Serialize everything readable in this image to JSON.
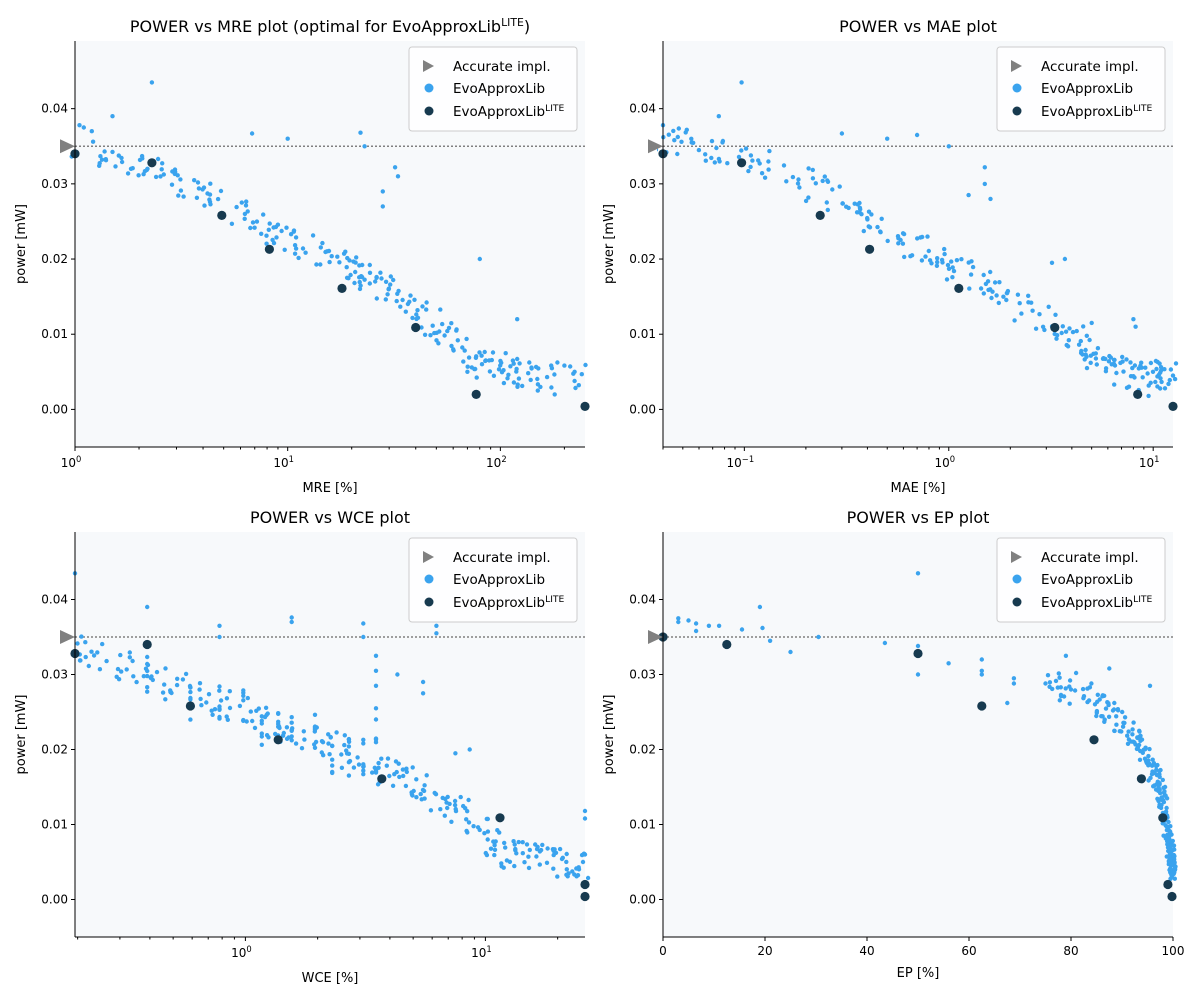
{
  "colors": {
    "panel_bg": "#f7f9fb",
    "evo": "#3aa3ee",
    "lite": "#173a4f",
    "accurate": "#808080",
    "reference_line": "#808080"
  },
  "legend": {
    "accurate": "Accurate impl.",
    "evo": "EvoApproxLib",
    "lite_base": "EvoApproxLib",
    "lite_sup": "LITE"
  },
  "chart_data": [
    {
      "type": "scatter",
      "title": "POWER vs MRE plot (optimal for EvoApproxLib",
      "title_sup": "LITE",
      "title_tail": ")",
      "xlabel": "MRE [%]",
      "ylabel": "power [mW]",
      "xscale": "log",
      "xlim": [
        1,
        250
      ],
      "ylim": [
        -0.005,
        0.049
      ],
      "yticks": [
        "0.00",
        "0.01",
        "0.02",
        "0.03",
        "0.04"
      ],
      "xticks": [
        {
          "v": 1,
          "base": "10",
          "exp": "0"
        },
        {
          "v": 10,
          "base": "10",
          "exp": "1"
        },
        {
          "v": 100,
          "base": "10",
          "exp": "2"
        }
      ],
      "accurate_power": 0.035,
      "lite": [
        [
          1.0,
          0.034
        ],
        [
          2.3,
          0.0328
        ],
        [
          4.9,
          0.0258
        ],
        [
          8.2,
          0.0213
        ],
        [
          18,
          0.0161
        ],
        [
          40,
          0.0109
        ],
        [
          77,
          0.002
        ],
        [
          250,
          0.0004
        ]
      ],
      "evo_anchors": [
        [
          1.0,
          0.0345
        ],
        [
          2.5,
          0.032
        ],
        [
          5,
          0.027
        ],
        [
          10,
          0.023
        ],
        [
          20,
          0.019
        ],
        [
          30,
          0.016
        ],
        [
          50,
          0.011
        ],
        [
          80,
          0.006
        ],
        [
          120,
          0.005
        ],
        [
          250,
          0.0045
        ]
      ],
      "evo_outliers": [
        [
          1.05,
          0.0378
        ],
        [
          1.1,
          0.0375
        ],
        [
          1.2,
          0.037
        ],
        [
          1.5,
          0.039
        ],
        [
          2.3,
          0.0435
        ],
        [
          6.8,
          0.0367
        ],
        [
          10,
          0.036
        ],
        [
          22,
          0.0368
        ],
        [
          23,
          0.035
        ],
        [
          32,
          0.0322
        ],
        [
          33,
          0.031
        ],
        [
          28,
          0.029
        ],
        [
          28,
          0.027
        ],
        [
          80,
          0.02
        ],
        [
          150,
          0.0025
        ],
        [
          180,
          0.002
        ],
        [
          120,
          0.012
        ],
        [
          60,
          0.008
        ],
        [
          70,
          0.005
        ]
      ]
    },
    {
      "type": "scatter",
      "title": "POWER vs MAE plot",
      "xlabel": "MAE [%]",
      "ylabel": "power [mW]",
      "xscale": "log",
      "xlim": [
        0.04,
        12.5
      ],
      "ylim": [
        -0.005,
        0.049
      ],
      "yticks": [
        "0.00",
        "0.01",
        "0.02",
        "0.03",
        "0.04"
      ],
      "xticks": [
        {
          "v": 0.1,
          "base": "10",
          "exp": "−1"
        },
        {
          "v": 1,
          "base": "10",
          "exp": "0"
        },
        {
          "v": 10,
          "base": "10",
          "exp": "1"
        }
      ],
      "accurate_power": 0.035,
      "lite": [
        [
          0.04,
          0.034
        ],
        [
          0.097,
          0.0328
        ],
        [
          0.235,
          0.0258
        ],
        [
          0.41,
          0.0213
        ],
        [
          1.12,
          0.0161
        ],
        [
          3.3,
          0.0109
        ],
        [
          8.4,
          0.002
        ],
        [
          12.5,
          0.0004
        ]
      ],
      "evo_anchors": [
        [
          0.04,
          0.0365
        ],
        [
          0.1,
          0.0335
        ],
        [
          0.25,
          0.029
        ],
        [
          0.5,
          0.0235
        ],
        [
          1,
          0.0195
        ],
        [
          2,
          0.0145
        ],
        [
          4,
          0.01
        ],
        [
          6,
          0.0055
        ],
        [
          9,
          0.0045
        ],
        [
          12.5,
          0.0045
        ]
      ],
      "evo_outliers": [
        [
          0.04,
          0.0378
        ],
        [
          0.075,
          0.039
        ],
        [
          0.097,
          0.0435
        ],
        [
          0.3,
          0.0367
        ],
        [
          0.5,
          0.036
        ],
        [
          0.7,
          0.0365
        ],
        [
          1.0,
          0.035
        ],
        [
          1.5,
          0.0322
        ],
        [
          1.5,
          0.03
        ],
        [
          1.6,
          0.028
        ],
        [
          1.25,
          0.0285
        ],
        [
          3.7,
          0.02
        ],
        [
          3.2,
          0.0195
        ],
        [
          8,
          0.012
        ],
        [
          8.2,
          0.011
        ],
        [
          9.5,
          0.0018
        ],
        [
          12.5,
          0.0045
        ],
        [
          5,
          0.0115
        ]
      ]
    },
    {
      "type": "scatter",
      "title": "POWER vs WCE plot",
      "xlabel": "WCE [%]",
      "ylabel": "power [mW]",
      "xscale": "log",
      "xlim": [
        0.195,
        26
      ],
      "ylim": [
        -0.005,
        0.049
      ],
      "yticks": [
        "0.00",
        "0.01",
        "0.02",
        "0.03",
        "0.04"
      ],
      "xticks": [
        {
          "v": 1,
          "base": "10",
          "exp": "0"
        },
        {
          "v": 10,
          "base": "10",
          "exp": "1"
        }
      ],
      "accurate_power": 0.035,
      "lite": [
        [
          0.195,
          0.0328
        ],
        [
          0.39,
          0.034
        ],
        [
          0.59,
          0.0258
        ],
        [
          1.37,
          0.0213
        ],
        [
          3.7,
          0.0161
        ],
        [
          11.5,
          0.0109
        ],
        [
          26,
          0.002
        ],
        [
          26,
          0.0004
        ]
      ],
      "evo_anchors": [
        [
          0.195,
          0.034
        ],
        [
          0.39,
          0.03
        ],
        [
          0.8,
          0.026
        ],
        [
          1.5,
          0.0225
        ],
        [
          3,
          0.019
        ],
        [
          5,
          0.0155
        ],
        [
          8,
          0.0115
        ],
        [
          12,
          0.0065
        ],
        [
          18,
          0.005
        ],
        [
          26,
          0.0048
        ]
      ],
      "evo_outliers": [
        [
          0.195,
          0.0435
        ],
        [
          0.39,
          0.039
        ],
        [
          0.78,
          0.0365
        ],
        [
          0.78,
          0.035
        ],
        [
          1.56,
          0.0376
        ],
        [
          1.56,
          0.037
        ],
        [
          3.1,
          0.0368
        ],
        [
          3.1,
          0.035
        ],
        [
          3.5,
          0.0325
        ],
        [
          3.5,
          0.0305
        ],
        [
          3.5,
          0.0285
        ],
        [
          3.5,
          0.0255
        ],
        [
          3.5,
          0.024
        ],
        [
          6.25,
          0.0365
        ],
        [
          6.25,
          0.0355
        ],
        [
          5.5,
          0.029
        ],
        [
          5.5,
          0.0275
        ],
        [
          4.3,
          0.03
        ],
        [
          7.5,
          0.0195
        ],
        [
          8.6,
          0.02
        ],
        [
          26,
          0.0118
        ],
        [
          26,
          0.0108
        ],
        [
          26,
          0.006
        ]
      ],
      "evo_columns": [
        0.39,
        0.59,
        0.78,
        0.98,
        1.17,
        1.37,
        1.56,
        1.95,
        2.3,
        2.7,
        3.1,
        3.5
      ]
    },
    {
      "type": "scatter",
      "title": "POWER vs EP plot",
      "xlabel": "EP [%]",
      "ylabel": "power [mW]",
      "xscale": "linear",
      "xlim": [
        0,
        100
      ],
      "ylim": [
        -0.005,
        0.049
      ],
      "yticks": [
        "0.00",
        "0.01",
        "0.02",
        "0.03",
        "0.04"
      ],
      "xticks": [
        {
          "v": 0,
          "label": "0"
        },
        {
          "v": 20,
          "label": "20"
        },
        {
          "v": 40,
          "label": "40"
        },
        {
          "v": 60,
          "label": "60"
        },
        {
          "v": 80,
          "label": "80"
        },
        {
          "v": 100,
          "label": "100"
        }
      ],
      "accurate_power": 0.035,
      "lite": [
        [
          0,
          0.035
        ],
        [
          12.5,
          0.034
        ],
        [
          50,
          0.0328
        ],
        [
          62.5,
          0.0258
        ],
        [
          84.5,
          0.0213
        ],
        [
          93.8,
          0.0161
        ],
        [
          98,
          0.0109
        ],
        [
          99,
          0.002
        ],
        [
          99.8,
          0.0004
        ]
      ],
      "evo_anchors": [
        [
          75,
          0.029
        ],
        [
          85,
          0.026
        ],
        [
          90,
          0.0235
        ],
        [
          94,
          0.0195
        ],
        [
          97,
          0.016
        ],
        [
          98,
          0.013
        ],
        [
          99,
          0.009
        ],
        [
          99.5,
          0.0065
        ],
        [
          99.8,
          0.005
        ],
        [
          100,
          0.0045
        ]
      ],
      "evo_outliers": [
        [
          3,
          0.0375
        ],
        [
          3,
          0.037
        ],
        [
          5,
          0.0372
        ],
        [
          6.5,
          0.0368
        ],
        [
          6.5,
          0.0358
        ],
        [
          9,
          0.0365
        ],
        [
          11,
          0.0365
        ],
        [
          15.5,
          0.036
        ],
        [
          19,
          0.039
        ],
        [
          19.5,
          0.0362
        ],
        [
          21,
          0.0345
        ],
        [
          25,
          0.033
        ],
        [
          30.5,
          0.035
        ],
        [
          43.5,
          0.0342
        ],
        [
          50,
          0.0435
        ],
        [
          50,
          0.0338
        ],
        [
          50,
          0.033
        ],
        [
          50,
          0.03
        ],
        [
          56,
          0.0315
        ],
        [
          62.5,
          0.032
        ],
        [
          62.5,
          0.0305
        ],
        [
          62.5,
          0.03
        ],
        [
          67.5,
          0.0262
        ],
        [
          68.8,
          0.0295
        ],
        [
          68.8,
          0.0288
        ],
        [
          75,
          0.0288
        ],
        [
          78,
          0.0283
        ],
        [
          79,
          0.0325
        ],
        [
          80,
          0.028
        ],
        [
          81,
          0.0302
        ],
        [
          84,
          0.0288
        ],
        [
          87.5,
          0.0308
        ],
        [
          95.5,
          0.0285
        ]
      ]
    }
  ]
}
